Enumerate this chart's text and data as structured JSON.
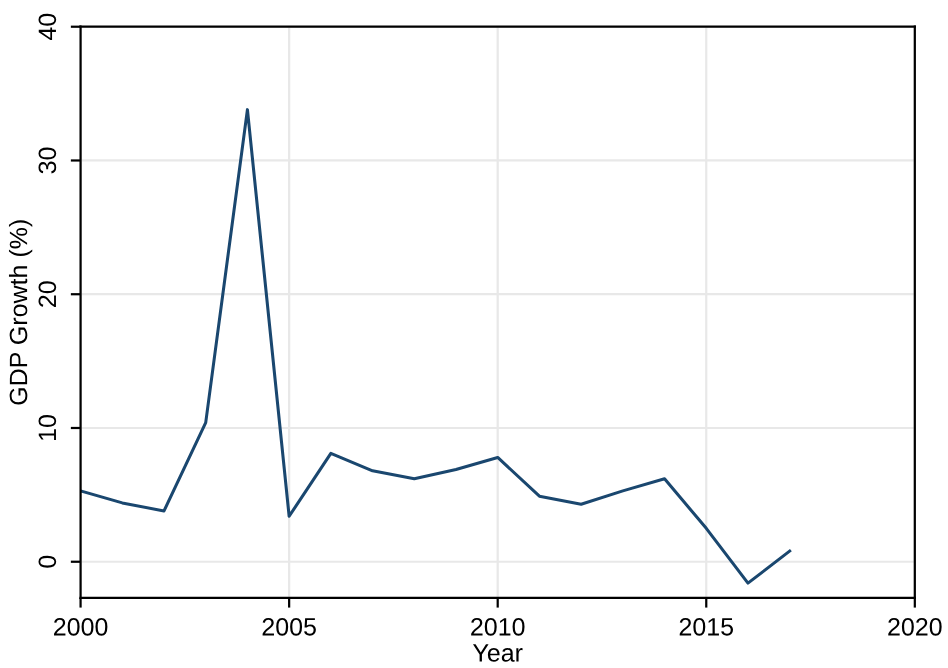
{
  "chart_data": {
    "type": "line",
    "xlabel": "Year",
    "ylabel": "GDP Growth (%)",
    "x": [
      2000,
      2001,
      2002,
      2003,
      2004,
      2005,
      2006,
      2007,
      2008,
      2009,
      2010,
      2011,
      2012,
      2013,
      2014,
      2015,
      2016,
      2017
    ],
    "series": [
      {
        "color": "#1a476f",
        "values": [
          5.3,
          4.4,
          3.8,
          10.4,
          33.8,
          3.4,
          8.1,
          6.8,
          6.2,
          6.9,
          7.8,
          4.9,
          4.3,
          5.3,
          6.2,
          2.5,
          -1.6,
          0.8
        ]
      }
    ],
    "xlim": [
      2000,
      2020
    ],
    "xticks": [
      2000,
      2005,
      2010,
      2015,
      2020
    ],
    "ylim": [
      -2.7,
      40
    ],
    "yticks": [
      0,
      10,
      20,
      30,
      40
    ],
    "grid": true,
    "marker": "none",
    "line_style": "solid"
  }
}
